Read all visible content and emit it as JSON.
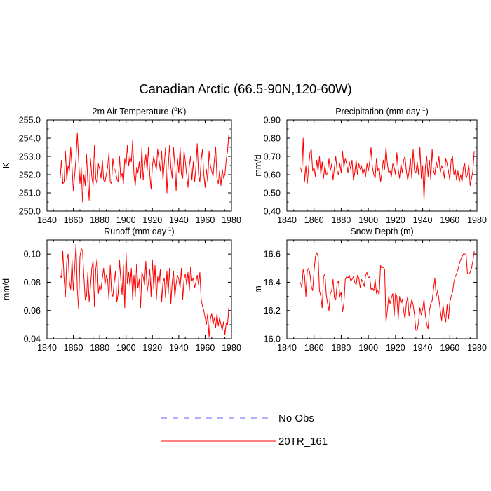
{
  "figure": {
    "title": "Canadian Arctic (66.5-90N,120-60W)"
  },
  "legend": [
    {
      "label": "No Obs",
      "color": "#6060ff",
      "style": "dashed"
    },
    {
      "label": "20TR_161",
      "color": "#ff0000",
      "style": "solid"
    }
  ],
  "chart_data": [
    {
      "type": "line",
      "title_main": "2m Air Temperature (",
      "title_sup": "o",
      "title_tail": "K)",
      "ylabel": "K",
      "xlim": [
        1840,
        1980
      ],
      "ylim": [
        250.0,
        255.0
      ],
      "xticks": [
        1840,
        1860,
        1880,
        1900,
        1920,
        1940,
        1960,
        1980
      ],
      "yticks": [
        "250.0",
        "251.0",
        "252.0",
        "253.0",
        "254.0",
        "255.0"
      ],
      "series": [
        {
          "name": "20TR_161",
          "x_start": 1850,
          "values": [
            251.8,
            252.8,
            251.5,
            251.6,
            253.3,
            251.7,
            252.5,
            252.2,
            253.5,
            252.4,
            251.1,
            252.0,
            252.9,
            254.3,
            252.8,
            251.5,
            252.4,
            250.5,
            252.0,
            251.4,
            253.1,
            251.6,
            250.6,
            252.9,
            251.9,
            251.4,
            253.6,
            251.8,
            251.5,
            252.6,
            252.3,
            251.8,
            252.8,
            251.7,
            251.6,
            252.0,
            252.4,
            253.2,
            251.6,
            251.5,
            252.9,
            252.3,
            252.2,
            251.8,
            251.6,
            253.0,
            251.8,
            252.1,
            251.5,
            252.9,
            252.5,
            253.6,
            252.5,
            253.0,
            252.7,
            253.9,
            252.0,
            251.4,
            252.4,
            252.1,
            252.7,
            251.8,
            253.5,
            251.7,
            252.5,
            253.1,
            252.2,
            253.5,
            252.0,
            251.2,
            252.5,
            253.0,
            252.6,
            252.3,
            253.4,
            252.8,
            252.2,
            253.3,
            251.7,
            252.6,
            253.5,
            251.0,
            252.4,
            253.6,
            252.4,
            251.8,
            253.5,
            252.5,
            251.1,
            252.9,
            252.1,
            253.5,
            252.0,
            251.8,
            253.3,
            252.7,
            252.0,
            251.3,
            252.5,
            253.0,
            251.7,
            252.7,
            251.6,
            252.4,
            253.7,
            252.0,
            251.6,
            252.8,
            253.4,
            252.0,
            251.3,
            252.3,
            251.6,
            253.3,
            252.5,
            252.2,
            251.9,
            252.8,
            253.5,
            251.8,
            251.5,
            252.2,
            251.4,
            252.3,
            251.8,
            252.0,
            252.8,
            253.3,
            254.2
          ]
        }
      ]
    },
    {
      "type": "line",
      "title_main": "Precipitation (mm day",
      "title_sup": "-1",
      "title_tail": ")",
      "ylabel": "mm/d",
      "xlim": [
        1840,
        1980
      ],
      "ylim": [
        0.4,
        0.9
      ],
      "xticks": [
        1840,
        1860,
        1880,
        1900,
        1920,
        1940,
        1960,
        1980
      ],
      "yticks": [
        "0.40",
        "0.50",
        "0.60",
        "0.70",
        "0.80",
        "0.90"
      ],
      "series": [
        {
          "name": "20TR_161",
          "x_start": 1850,
          "values": [
            0.64,
            0.61,
            0.8,
            0.56,
            0.65,
            0.55,
            0.64,
            0.72,
            0.74,
            0.62,
            0.64,
            0.59,
            0.68,
            0.62,
            0.7,
            0.6,
            0.67,
            0.58,
            0.65,
            0.6,
            0.61,
            0.69,
            0.62,
            0.66,
            0.57,
            0.64,
            0.7,
            0.62,
            0.6,
            0.66,
            0.61,
            0.73,
            0.64,
            0.69,
            0.66,
            0.61,
            0.67,
            0.63,
            0.68,
            0.57,
            0.61,
            0.68,
            0.6,
            0.66,
            0.63,
            0.65,
            0.6,
            0.63,
            0.59,
            0.66,
            0.62,
            0.67,
            0.75,
            0.64,
            0.6,
            0.58,
            0.69,
            0.62,
            0.64,
            0.56,
            0.61,
            0.68,
            0.63,
            0.75,
            0.66,
            0.61,
            0.62,
            0.59,
            0.66,
            0.64,
            0.6,
            0.72,
            0.63,
            0.58,
            0.66,
            0.61,
            0.68,
            0.7,
            0.62,
            0.57,
            0.62,
            0.69,
            0.58,
            0.74,
            0.62,
            0.61,
            0.67,
            0.6,
            0.75,
            0.58,
            0.65,
            0.46,
            0.64,
            0.7,
            0.59,
            0.68,
            0.57,
            0.74,
            0.62,
            0.6,
            0.67,
            0.64,
            0.7,
            0.61,
            0.65,
            0.63,
            0.58,
            0.69,
            0.66,
            0.62,
            0.57,
            0.68,
            0.7,
            0.6,
            0.63,
            0.57,
            0.62,
            0.56,
            0.6,
            0.56,
            0.64,
            0.66,
            0.58,
            0.6,
            0.66,
            0.54,
            0.58,
            0.62,
            0.73
          ]
        }
      ]
    },
    {
      "type": "line",
      "title_main": "Runoff (mm day",
      "title_sup": "-1",
      "title_tail": ")",
      "ylabel": "mm/d",
      "xlim": [
        1840,
        1980
      ],
      "ylim": [
        0.04,
        0.11
      ],
      "xticks": [
        1840,
        1860,
        1880,
        1900,
        1920,
        1940,
        1960,
        1980
      ],
      "yticks": [
        "0.04",
        "0.06",
        "0.08",
        "0.10"
      ],
      "series": [
        {
          "name": "20TR_161",
          "x_start": 1850,
          "values": [
            0.085,
            0.083,
            0.102,
            0.082,
            0.07,
            0.095,
            0.1,
            0.08,
            0.075,
            0.096,
            0.074,
            0.09,
            0.107,
            0.075,
            0.061,
            0.098,
            0.104,
            0.102,
            0.084,
            0.068,
            0.07,
            0.087,
            0.066,
            0.077,
            0.09,
            0.095,
            0.063,
            0.089,
            0.097,
            0.072,
            0.078,
            0.075,
            0.083,
            0.09,
            0.078,
            0.085,
            0.082,
            0.068,
            0.092,
            0.073,
            0.07,
            0.08,
            0.088,
            0.066,
            0.072,
            0.096,
            0.082,
            0.071,
            0.092,
            0.062,
            0.101,
            0.079,
            0.087,
            0.077,
            0.09,
            0.068,
            0.085,
            0.07,
            0.093,
            0.076,
            0.082,
            0.062,
            0.087,
            0.084,
            0.078,
            0.095,
            0.073,
            0.08,
            0.089,
            0.07,
            0.096,
            0.075,
            0.092,
            0.068,
            0.084,
            0.079,
            0.089,
            0.066,
            0.08,
            0.083,
            0.069,
            0.088,
            0.072,
            0.09,
            0.065,
            0.08,
            0.088,
            0.069,
            0.079,
            0.085,
            0.082,
            0.076,
            0.09,
            0.068,
            0.082,
            0.086,
            0.078,
            0.087,
            0.074,
            0.091,
            0.081,
            0.083,
            0.076,
            0.08,
            0.085,
            0.078,
            0.087,
            0.068,
            0.063,
            0.06,
            0.055,
            0.05,
            0.058,
            0.041,
            0.054,
            0.058,
            0.05,
            0.055,
            0.048,
            0.058,
            0.049,
            0.055,
            0.05,
            0.046,
            0.052,
            0.043,
            0.051,
            0.05,
            0.062
          ]
        }
      ]
    },
    {
      "type": "line",
      "title_main": "Snow Depth (m)",
      "title_sup": "",
      "title_tail": "",
      "ylabel": "m",
      "xlim": [
        1840,
        1980
      ],
      "ylim": [
        16.0,
        16.7
      ],
      "xticks": [
        1840,
        1860,
        1880,
        1900,
        1920,
        1940,
        1960,
        1980
      ],
      "yticks": [
        "16.0",
        "16.2",
        "16.4",
        "16.6"
      ],
      "series": [
        {
          "name": "20TR_161",
          "x_start": 1850,
          "values": [
            16.4,
            16.36,
            16.49,
            16.45,
            16.3,
            16.48,
            16.5,
            16.46,
            16.37,
            16.34,
            16.48,
            16.58,
            16.61,
            16.58,
            16.34,
            16.3,
            16.22,
            16.44,
            16.46,
            16.31,
            16.25,
            16.2,
            16.32,
            16.34,
            16.42,
            16.29,
            16.28,
            16.39,
            16.41,
            16.3,
            16.33,
            16.19,
            16.25,
            16.42,
            16.44,
            16.43,
            16.45,
            16.41,
            16.42,
            16.44,
            16.4,
            16.38,
            16.45,
            16.43,
            16.36,
            16.42,
            16.4,
            16.37,
            16.45,
            16.47,
            16.43,
            16.44,
            16.35,
            16.36,
            16.34,
            16.42,
            16.32,
            16.34,
            16.31,
            16.52,
            16.5,
            16.51,
            16.49,
            16.12,
            16.2,
            16.3,
            16.25,
            16.29,
            16.32,
            16.16,
            16.32,
            16.3,
            16.14,
            16.3,
            16.25,
            16.28,
            16.2,
            16.14,
            16.25,
            16.3,
            16.16,
            16.22,
            16.28,
            16.24,
            16.17,
            16.06,
            16.06,
            16.12,
            16.22,
            16.17,
            16.21,
            16.28,
            16.17,
            16.1,
            16.07,
            16.2,
            16.25,
            16.27,
            16.35,
            16.43,
            16.3,
            16.34,
            16.28,
            16.2,
            16.13,
            16.24,
            16.16,
            16.12,
            16.24,
            16.14,
            16.26,
            16.3,
            16.33,
            16.4,
            16.44,
            16.46,
            16.49,
            16.53,
            16.56,
            16.58,
            16.6,
            16.6,
            16.6,
            16.46,
            16.46,
            16.47,
            16.5,
            16.55,
            16.62
          ]
        }
      ]
    }
  ]
}
